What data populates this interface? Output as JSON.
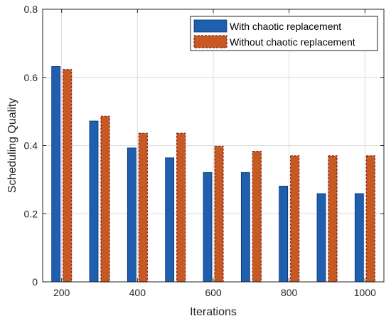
{
  "chart_data": {
    "type": "bar",
    "xlabel": "Iterations",
    "ylabel": "Scheduling Quality",
    "x": [
      200,
      300,
      400,
      500,
      600,
      700,
      800,
      900,
      1000
    ],
    "x_tick_labels": [
      "200",
      "400",
      "600",
      "800",
      "1000"
    ],
    "y_tick_labels": [
      "0",
      "0.2",
      "0.4",
      "0.6",
      "0.8"
    ],
    "ylim": [
      0,
      0.8
    ],
    "xlim": [
      150,
      1050
    ],
    "grid": true,
    "legend_position": "top-right",
    "series": [
      {
        "name": "With chaotic replacement",
        "color": "#1f5fb0",
        "values": [
          0.632,
          0.472,
          0.393,
          0.364,
          0.321,
          0.321,
          0.281,
          0.259,
          0.259
        ]
      },
      {
        "name": "Without chaotic replacement",
        "color": "#c65a22",
        "edge_color": "#8b1a1a",
        "values": [
          0.623,
          0.486,
          0.436,
          0.436,
          0.398,
          0.383,
          0.37,
          0.37,
          0.37
        ]
      }
    ]
  }
}
